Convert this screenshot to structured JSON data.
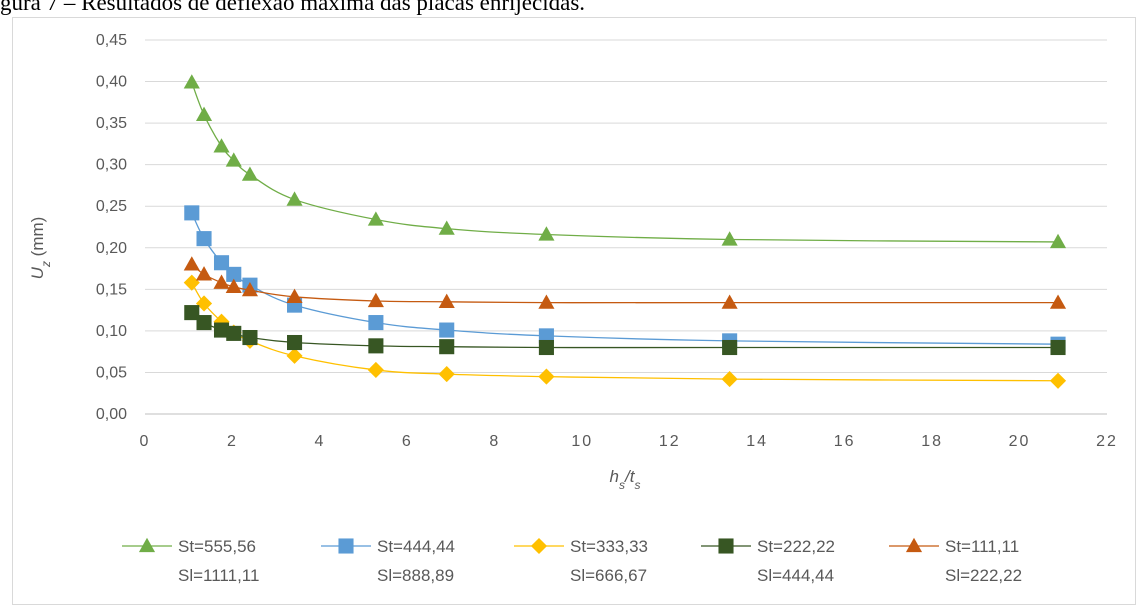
{
  "caption": "gura 7 – Resultados de deflexão máxima das placas enrijecidas.",
  "chart_data": {
    "type": "line",
    "xlabel_main": "h",
    "xlabel_sub1": "s",
    "xlabel_sep": "/t",
    "xlabel_sub2": "s",
    "ylabel_main": "U",
    "ylabel_sub": "z",
    "ylabel_unit": " (mm)",
    "xlim": [
      0,
      22
    ],
    "ylim": [
      0,
      0.45
    ],
    "xticks": [
      0,
      2,
      4,
      6,
      8,
      10,
      12,
      14,
      16,
      18,
      20,
      22
    ],
    "yticks": [
      "0,00",
      "0,05",
      "0,10",
      "0,15",
      "0,20",
      "0,25",
      "0,30",
      "0,35",
      "0,40",
      "0,45"
    ],
    "grid": true,
    "legend_position": "bottom",
    "x": [
      1.07,
      1.35,
      1.75,
      2.03,
      2.4,
      3.42,
      5.28,
      6.9,
      9.18,
      13.37,
      20.88
    ],
    "series": [
      {
        "name_line1": "St=555,56",
        "name_line2": "Sl=1111,11",
        "color": "#70ad47",
        "marker": "triangle",
        "values": [
          0.399,
          0.36,
          0.322,
          0.305,
          0.288,
          0.258,
          0.234,
          0.223,
          0.216,
          0.21,
          0.207
        ]
      },
      {
        "name_line1": "St=444,44",
        "name_line2": "Sl=888,89",
        "color": "#5b9bd5",
        "marker": "square",
        "values": [
          0.242,
          0.211,
          0.182,
          0.168,
          0.155,
          0.131,
          0.11,
          0.101,
          0.094,
          0.088,
          0.084
        ]
      },
      {
        "name_line1": "St=333,33",
        "name_line2": "Sl=666,67",
        "color": "#ffc000",
        "marker": "diamond",
        "values": [
          0.158,
          0.133,
          0.111,
          0.098,
          0.088,
          0.07,
          0.053,
          0.048,
          0.045,
          0.042,
          0.04
        ]
      },
      {
        "name_line1": "St=222,22",
        "name_line2": "Sl=444,44",
        "color": "#375623",
        "marker": "square",
        "values": [
          0.122,
          0.11,
          0.101,
          0.097,
          0.092,
          0.086,
          0.082,
          0.081,
          0.08,
          0.08,
          0.08
        ]
      },
      {
        "name_line1": "St=111,11",
        "name_line2": "Sl=222,22",
        "color": "#c55a11",
        "marker": "triangle",
        "values": [
          0.18,
          0.168,
          0.158,
          0.153,
          0.149,
          0.141,
          0.136,
          0.135,
          0.134,
          0.134,
          0.134
        ]
      }
    ]
  }
}
